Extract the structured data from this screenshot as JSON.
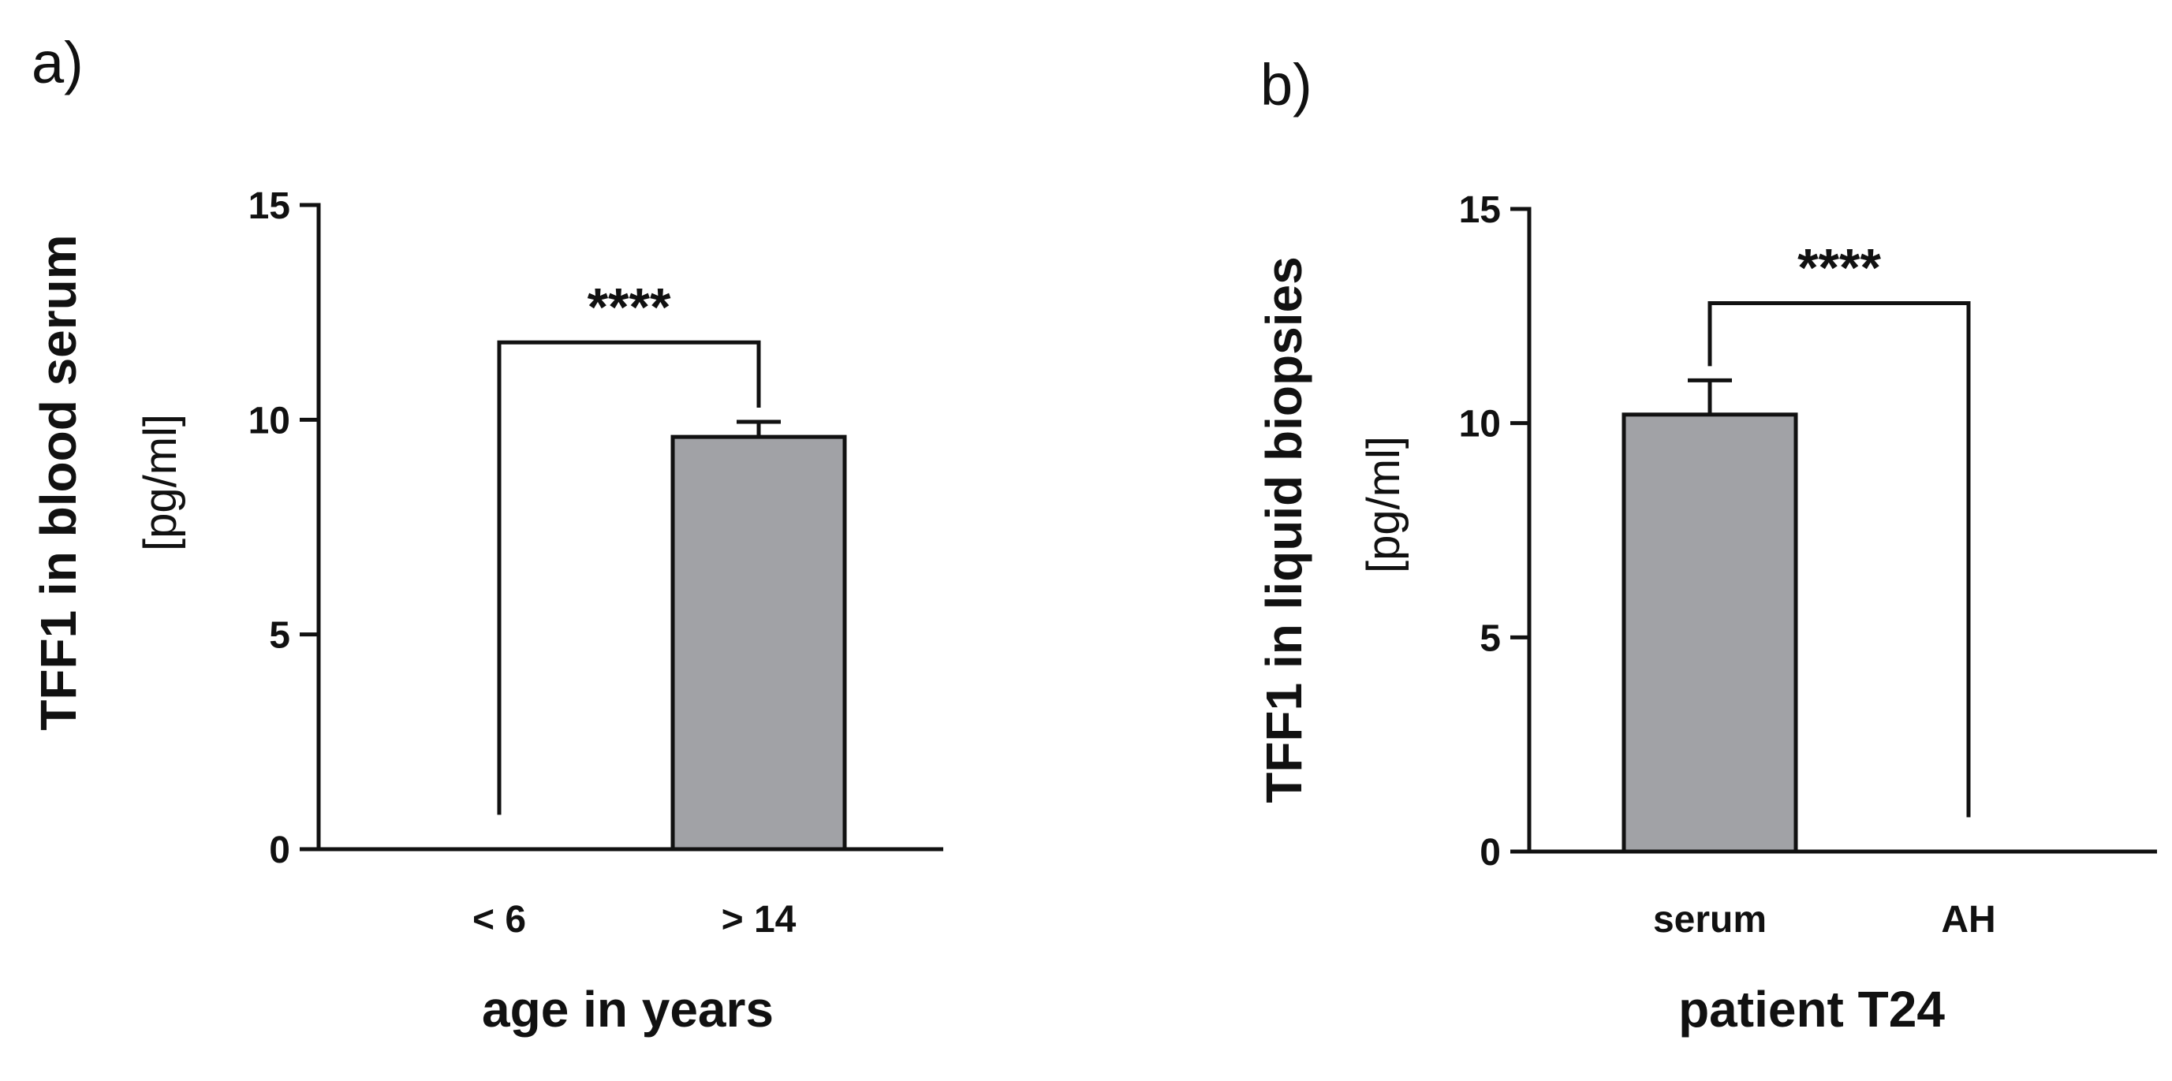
{
  "colors": {
    "bar_fill": "#a1a2a6",
    "stroke": "#111111",
    "background": "#ffffff"
  },
  "chart_data": [
    {
      "type": "bar",
      "panel_label": "a)",
      "title": "",
      "ylabel": "TFF1 in blood serum",
      "ylabel_unit": "[pg/ml]",
      "xlabel": "age in years",
      "categories": [
        "< 6",
        "> 14"
      ],
      "values": [
        0,
        9.6
      ],
      "errors": [
        0,
        0.35
      ],
      "ylim": [
        0,
        15
      ],
      "yticks": [
        0,
        5,
        10,
        15
      ],
      "ytick_labels": [
        "0",
        "5",
        "10",
        "15"
      ],
      "significance": {
        "label": "****",
        "between": [
          0,
          1
        ],
        "y": 11.8
      },
      "grid": false,
      "legend": "none"
    },
    {
      "type": "bar",
      "panel_label": "b)",
      "title": "",
      "ylabel": "TFF1 in liquid biopsies",
      "ylabel_unit": "[pg/ml]",
      "xlabel": "patient T24",
      "categories": [
        "serum",
        "AH"
      ],
      "values": [
        10.2,
        0
      ],
      "errors": [
        0.8,
        0
      ],
      "ylim": [
        0,
        15
      ],
      "yticks": [
        0,
        5,
        10,
        15
      ],
      "ytick_labels": [
        "0",
        "5",
        "10",
        "15"
      ],
      "significance": {
        "label": "****",
        "between": [
          0,
          1
        ],
        "y": 12.8
      },
      "grid": false,
      "legend": "none"
    }
  ]
}
